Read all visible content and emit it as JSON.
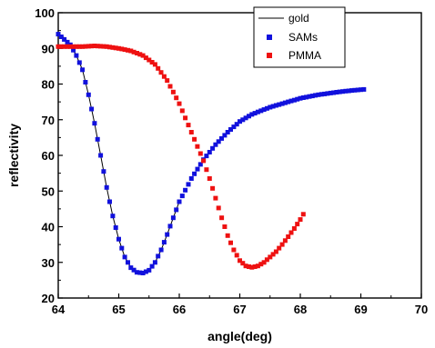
{
  "chart_data": {
    "type": "scatter",
    "title": "",
    "xlabel": "angle(deg)",
    "ylabel": "reflectivity",
    "xlim": [
      64,
      70
    ],
    "ylim": [
      20,
      100
    ],
    "xticks": [
      "64",
      "65",
      "66",
      "67",
      "68",
      "69",
      "70"
    ],
    "yticks": [
      "20",
      "30",
      "40",
      "50",
      "60",
      "70",
      "80",
      "90",
      "100"
    ],
    "grid": false,
    "legend_position": "top-center",
    "series": [
      {
        "name": "gold",
        "style": "line",
        "color": "#000000",
        "x": [
          64.0,
          64.1,
          64.2,
          64.3,
          64.4,
          64.5,
          64.6,
          64.7,
          64.8,
          64.9,
          65.0,
          65.1,
          65.2,
          65.3,
          65.4,
          65.5,
          65.6,
          65.7,
          65.8,
          65.9,
          66.0
        ],
        "y": [
          94,
          93,
          91,
          88,
          84,
          77,
          69,
          60,
          51,
          43,
          36.5,
          31.5,
          28.5,
          27.2,
          27.0,
          27.8,
          30.0,
          33.5,
          37.8,
          42.5,
          47
        ]
      },
      {
        "name": "SAMs",
        "style": "markers",
        "color": "#1111dd",
        "x": [
          64.0,
          64.2,
          64.3,
          64.4,
          64.5,
          64.6,
          64.7,
          64.8,
          64.9,
          65.0,
          65.1,
          65.2,
          65.3,
          65.4,
          65.5,
          65.6,
          65.7,
          65.8,
          65.9,
          66.0,
          66.2,
          66.4,
          66.6,
          66.8,
          67.0,
          67.2,
          67.5,
          67.8,
          68.0,
          68.3,
          68.6,
          68.8,
          69.05
        ],
        "y": [
          94,
          91,
          88,
          84,
          77,
          69,
          60,
          51,
          43,
          36.5,
          31.5,
          28.5,
          27.2,
          27.0,
          27.8,
          30.0,
          33.5,
          37.8,
          42.5,
          47,
          53.5,
          58.8,
          63.0,
          66.5,
          69.5,
          71.5,
          73.5,
          75.0,
          76.0,
          77.0,
          77.7,
          78.1,
          78.5
        ]
      },
      {
        "name": "PMMA",
        "style": "markers",
        "color": "#ee1111",
        "x": [
          64.0,
          64.2,
          64.4,
          64.6,
          64.8,
          65.0,
          65.2,
          65.4,
          65.6,
          65.8,
          66.0,
          66.2,
          66.3,
          66.4,
          66.5,
          66.6,
          66.7,
          66.8,
          66.9,
          67.0,
          67.1,
          67.2,
          67.3,
          67.4,
          67.5,
          67.6,
          67.7,
          67.8,
          67.9,
          68.0,
          68.05
        ],
        "y": [
          90.5,
          90.5,
          90.5,
          90.7,
          90.5,
          90.0,
          89.3,
          88.0,
          85.5,
          81.0,
          74.5,
          66.5,
          62.5,
          58.5,
          53.5,
          48.0,
          42.5,
          37.5,
          33.5,
          30.5,
          29.0,
          28.6,
          29.0,
          30.0,
          31.5,
          33.0,
          35.0,
          37.2,
          39.5,
          42.0,
          43.5
        ]
      }
    ]
  }
}
